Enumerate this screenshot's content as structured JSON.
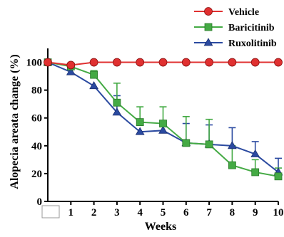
{
  "chart_data": {
    "type": "line",
    "title": "",
    "xlabel": "Weeks",
    "ylabel": "Alopecia areata change (%)",
    "x": [
      0,
      1,
      2,
      3,
      4,
      5,
      6,
      7,
      8,
      9,
      10
    ],
    "x_tick_labels": [
      "",
      "1",
      "2",
      "3",
      "4",
      "5",
      "6",
      "7",
      "8",
      "9",
      "10"
    ],
    "xlim": [
      0,
      10
    ],
    "ylim": [
      0,
      110
    ],
    "y_ticks": [
      0,
      20,
      40,
      60,
      80,
      100
    ],
    "y_tick_labels": [
      "0",
      "20",
      "40",
      "60",
      "80",
      "100"
    ],
    "grid": false,
    "legend_position": "top-right",
    "series": [
      {
        "name": "Vehicle",
        "color": "#e03030",
        "marker": "circle",
        "values": [
          100,
          98,
          100,
          100,
          100,
          100,
          100,
          100,
          100,
          100,
          100
        ],
        "error": [
          0,
          0,
          0,
          0,
          0,
          0,
          0,
          0,
          0,
          0,
          0
        ]
      },
      {
        "name": "Baricitinib",
        "color": "#44aa44",
        "marker": "square",
        "values": [
          100,
          97,
          91,
          71,
          57,
          56,
          42,
          41,
          26,
          21,
          18
        ],
        "error": [
          0,
          0,
          3,
          14,
          11,
          12,
          19,
          18,
          14,
          9,
          6
        ]
      },
      {
        "name": "Ruxolitinib",
        "color": "#2b4aa0",
        "marker": "triangle",
        "values": [
          100,
          93,
          83,
          64,
          50,
          51,
          42,
          41,
          40,
          34,
          21
        ],
        "error": [
          0,
          0,
          0,
          12,
          0,
          0,
          14,
          14,
          13,
          9,
          10
        ]
      }
    ]
  }
}
